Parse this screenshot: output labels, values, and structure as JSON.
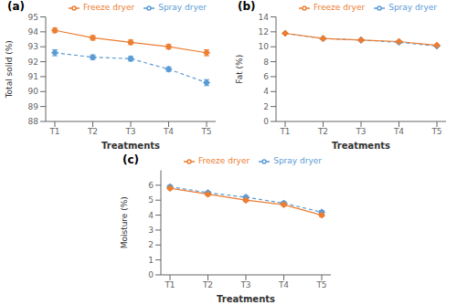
{
  "chart_data": [
    {
      "type": "line",
      "title": "(a)",
      "categories": [
        "T1",
        "T2",
        "T3",
        "T4",
        "T5"
      ],
      "xlabel": "Treatments",
      "ylabel": "Total solid (%)",
      "ylim": [
        88,
        95
      ],
      "yticks": [
        88,
        89,
        90,
        91,
        92,
        93,
        94,
        95
      ],
      "grid": false,
      "legend": "upper right",
      "series": [
        {
          "name": "Spray dryer",
          "color": "#5B9BD5",
          "marker": "diamond",
          "line_style": "dashed",
          "values": [
            92.6,
            92.3,
            92.2,
            91.5,
            90.6
          ],
          "errors": [
            0.2,
            0.15,
            0.15,
            0.15,
            0.2
          ]
        },
        {
          "name": "Freeze dryer",
          "color": "#ED7D31",
          "marker": "diamond",
          "line_style": "solid",
          "values": [
            94.1,
            93.6,
            93.3,
            93.0,
            92.6
          ],
          "errors": [
            0.15,
            0.15,
            0.15,
            0.15,
            0.2
          ]
        }
      ]
    },
    {
      "type": "line",
      "title": "(b)",
      "categories": [
        "T1",
        "T2",
        "T3",
        "T4",
        "T5"
      ],
      "xlabel": "Treatments",
      "ylabel": "Fat (%)",
      "ylim": [
        0,
        14
      ],
      "yticks": [
        0,
        2,
        4,
        6,
        8,
        10,
        12,
        14
      ],
      "grid": false,
      "legend": "upper right",
      "series": [
        {
          "name": "Spray dryer",
          "color": "#5B9BD5",
          "marker": "diamond",
          "line_style": "dashed",
          "values": [
            11.8,
            11.1,
            10.9,
            10.6,
            10.1
          ],
          "errors": [
            0.1,
            0.1,
            0.1,
            0.1,
            0.1
          ]
        },
        {
          "name": "Freeze dryer",
          "color": "#ED7D31",
          "marker": "diamond",
          "line_style": "solid",
          "values": [
            11.8,
            11.1,
            10.9,
            10.7,
            10.2
          ],
          "errors": [
            0.1,
            0.1,
            0.1,
            0.1,
            0.1
          ]
        }
      ]
    },
    {
      "type": "line",
      "title": "(c)",
      "categories": [
        "T1",
        "T2",
        "T3",
        "T4",
        "T5"
      ],
      "xlabel": "Treatments",
      "ylabel": "Moisture (%)",
      "ylim": [
        0,
        7
      ],
      "yticks": [
        0,
        1,
        2,
        3,
        4,
        5,
        6
      ],
      "grid": false,
      "legend": "upper right",
      "series": [
        {
          "name": "Spray dryer",
          "color": "#5B9BD5",
          "marker": "diamond",
          "line_style": "dashed",
          "values": [
            5.9,
            5.5,
            5.2,
            4.8,
            4.2
          ],
          "errors": [
            0.1,
            0.1,
            0.1,
            0.1,
            0.1
          ]
        },
        {
          "name": "Freeze dryer",
          "color": "#ED7D31",
          "marker": "diamond",
          "line_style": "solid",
          "values": [
            5.8,
            5.4,
            5.0,
            4.7,
            4.0
          ],
          "errors": [
            0.1,
            0.1,
            0.1,
            0.1,
            0.1
          ]
        }
      ]
    }
  ]
}
